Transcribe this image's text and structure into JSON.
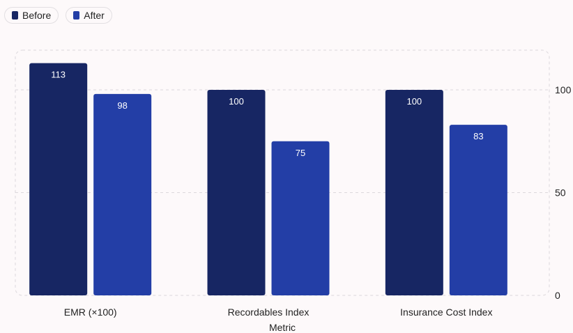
{
  "chart_data": {
    "type": "bar",
    "categories": [
      "EMR (×100)",
      "Recordables Index",
      "Insurance Cost Index"
    ],
    "series": [
      {
        "name": "Before",
        "values": [
          113,
          100,
          100
        ],
        "color": "#172663"
      },
      {
        "name": "After",
        "values": [
          98,
          75,
          83
        ],
        "color": "#233ea6"
      }
    ],
    "xlabel": "Metric",
    "ylabel": "",
    "ylim": [
      0,
      120
    ],
    "yticks": [
      0,
      50,
      100
    ],
    "y_axis_side": "right",
    "grid": true,
    "legend_placement": "top-left"
  }
}
